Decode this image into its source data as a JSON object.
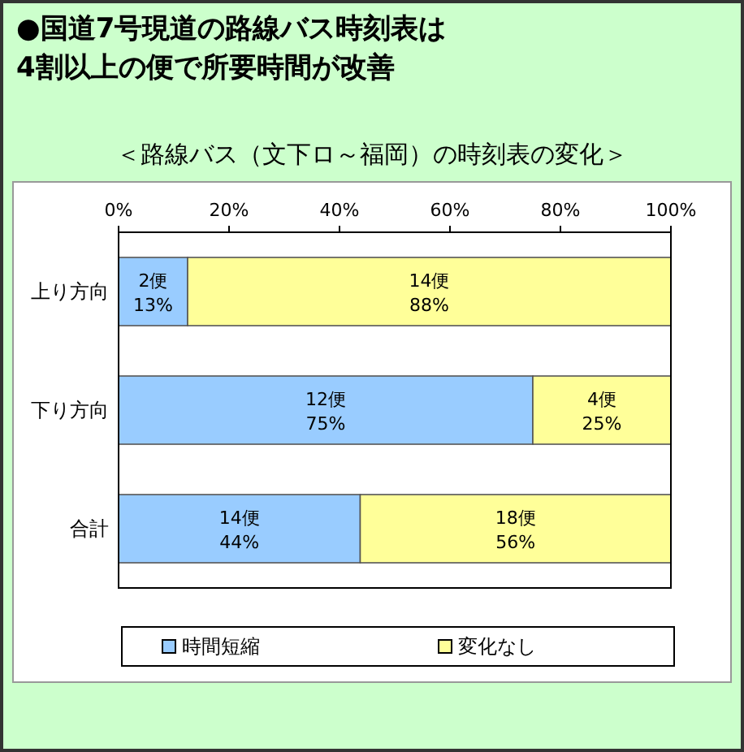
{
  "chart_data": {
    "type": "bar",
    "orientation": "horizontal",
    "stacked": true,
    "title": "●国道7号現道の路線バス時刻表は\n4割以上の便で所要時間が改善",
    "subtitle": "＜路線バス（文下ロ～福岡）の時刻表の変化＞",
    "categories": [
      "上り方向",
      "下り方向",
      "合計"
    ],
    "series": [
      {
        "name": "時間短縮",
        "color": "#99ccff",
        "values": [
          12.5,
          75,
          43.75
        ],
        "value_labels": [
          "2便\n13%",
          "12便\n75%",
          "14便\n44%"
        ]
      },
      {
        "name": "変化なし",
        "color": "#ffff99",
        "values": [
          87.5,
          25,
          56.25
        ],
        "value_labels": [
          "14便\n88%",
          "4便\n25%",
          "18便\n56%"
        ]
      }
    ],
    "xlim": [
      0,
      100
    ],
    "xticks": [
      {
        "value": 0,
        "label": "0%"
      },
      {
        "value": 20,
        "label": "20%"
      },
      {
        "value": 40,
        "label": "40%"
      },
      {
        "value": 60,
        "label": "60%"
      },
      {
        "value": 80,
        "label": "80%"
      },
      {
        "value": 100,
        "label": "100%"
      }
    ],
    "legend": "bottom",
    "grid": false
  }
}
